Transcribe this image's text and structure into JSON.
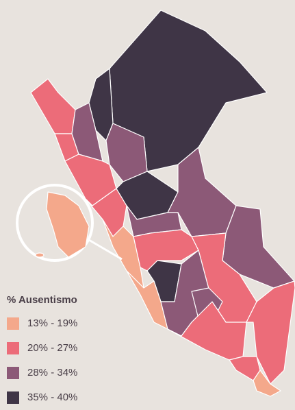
{
  "legend": {
    "title": "% Ausentismo",
    "items": [
      {
        "label": "13% - 19%",
        "color": "#f4a88b"
      },
      {
        "label": "20% - 27%",
        "color": "#ec6c79"
      },
      {
        "label": "28% - 34%",
        "color": "#8c5977"
      },
      {
        "label": "35% - 40%",
        "color": "#3f3546"
      }
    ]
  }
}
